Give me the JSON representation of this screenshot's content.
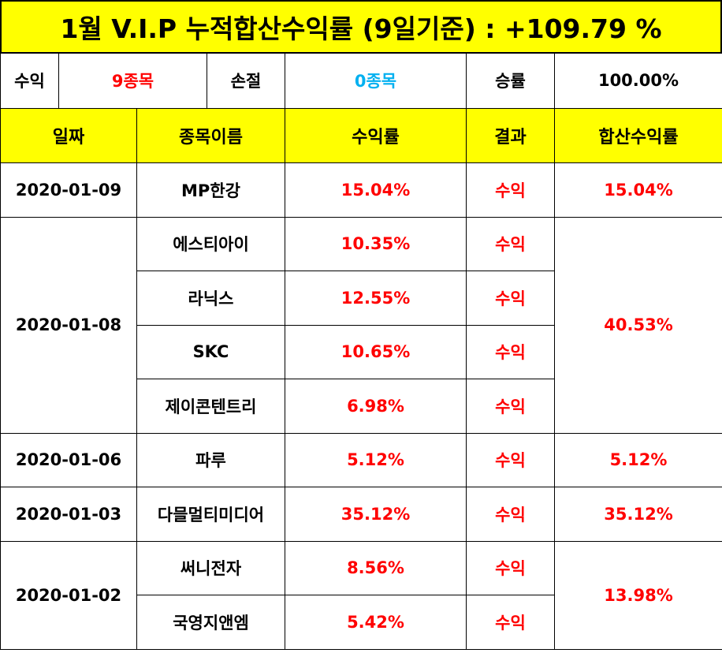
{
  "title": "1월 V.I.P 누적합산수익률 (9일기준) : +109.79 %",
  "summary": {
    "profit_label": "수익",
    "profit_value": "9종목",
    "loss_label": "손절",
    "loss_value": "0종목",
    "winrate_label": "승률",
    "winrate_value": "100.00%"
  },
  "headers": [
    "일짜",
    "종목이름",
    "수익률",
    "결과",
    "합산수익률"
  ],
  "groups": [
    {
      "date": "2020-01-09",
      "total": "15.04%",
      "rows": [
        {
          "name": "MP한강",
          "rate": "15.04%",
          "result": "수익"
        }
      ]
    },
    {
      "date": "2020-01-08",
      "total": "40.53%",
      "rows": [
        {
          "name": "에스티아이",
          "rate": "10.35%",
          "result": "수익"
        },
        {
          "name": "라닉스",
          "rate": "12.55%",
          "result": "수익"
        },
        {
          "name": "SKC",
          "rate": "10.65%",
          "result": "수익"
        },
        {
          "name": "제이콘텐트리",
          "rate": "6.98%",
          "result": "수익"
        }
      ]
    },
    {
      "date": "2020-01-06",
      "total": "5.12%",
      "rows": [
        {
          "name": "파루",
          "rate": "5.12%",
          "result": "수익"
        }
      ]
    },
    {
      "date": "2020-01-03",
      "total": "35.12%",
      "rows": [
        {
          "name": "다믈멀티미디어",
          "rate": "35.12%",
          "result": "수익"
        }
      ]
    },
    {
      "date": "2020-01-02",
      "total": "13.98%",
      "rows": [
        {
          "name": "써니전자",
          "rate": "8.56%",
          "result": "수익"
        },
        {
          "name": "국영지앤엠",
          "rate": "5.42%",
          "result": "수익"
        }
      ]
    }
  ],
  "colors": {
    "header_bg": "#ffff00",
    "profit": "#ff0000",
    "loss": "#00b0f0"
  }
}
